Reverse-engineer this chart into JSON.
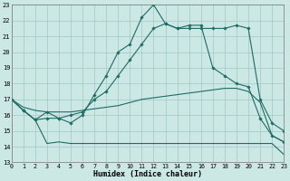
{
  "xlabel": "Humidex (Indice chaleur)",
  "xlim": [
    0,
    23
  ],
  "ylim": [
    13,
    23
  ],
  "xticks": [
    0,
    1,
    2,
    3,
    4,
    5,
    6,
    7,
    8,
    9,
    10,
    11,
    12,
    13,
    14,
    15,
    16,
    17,
    18,
    19,
    20,
    21,
    22,
    23
  ],
  "yticks": [
    13,
    14,
    15,
    16,
    17,
    18,
    19,
    20,
    21,
    22,
    23
  ],
  "background_color": "#cce8e5",
  "grid_color": "#9fc8c5",
  "line_color": "#1e6b65",
  "line1_y": [
    17.0,
    16.3,
    15.7,
    16.2,
    15.8,
    15.5,
    16.0,
    17.3,
    18.5,
    20.0,
    20.5,
    22.2,
    23.0,
    21.8,
    21.5,
    21.7,
    21.7,
    19.0,
    18.5,
    18.0,
    17.8,
    15.8,
    14.7,
    14.3
  ],
  "line2_y": [
    17.0,
    16.3,
    15.7,
    15.8,
    15.8,
    16.0,
    16.2,
    17.0,
    17.5,
    18.5,
    19.5,
    20.5,
    21.5,
    21.8,
    21.5,
    21.5,
    21.5,
    21.5,
    21.5,
    21.7,
    21.5,
    17.0,
    15.5,
    15.0
  ],
  "line3_y": [
    17.0,
    16.5,
    16.3,
    16.2,
    16.2,
    16.2,
    16.3,
    16.4,
    16.5,
    16.6,
    16.8,
    17.0,
    17.1,
    17.2,
    17.3,
    17.4,
    17.5,
    17.6,
    17.7,
    17.7,
    17.5,
    16.8,
    14.7,
    14.3
  ],
  "line4_y": [
    17.0,
    16.3,
    15.7,
    14.2,
    14.3,
    14.2,
    14.2,
    14.2,
    14.2,
    14.2,
    14.2,
    14.2,
    14.2,
    14.2,
    14.2,
    14.2,
    14.2,
    14.2,
    14.2,
    14.2,
    14.2,
    14.2,
    14.2,
    13.5
  ]
}
